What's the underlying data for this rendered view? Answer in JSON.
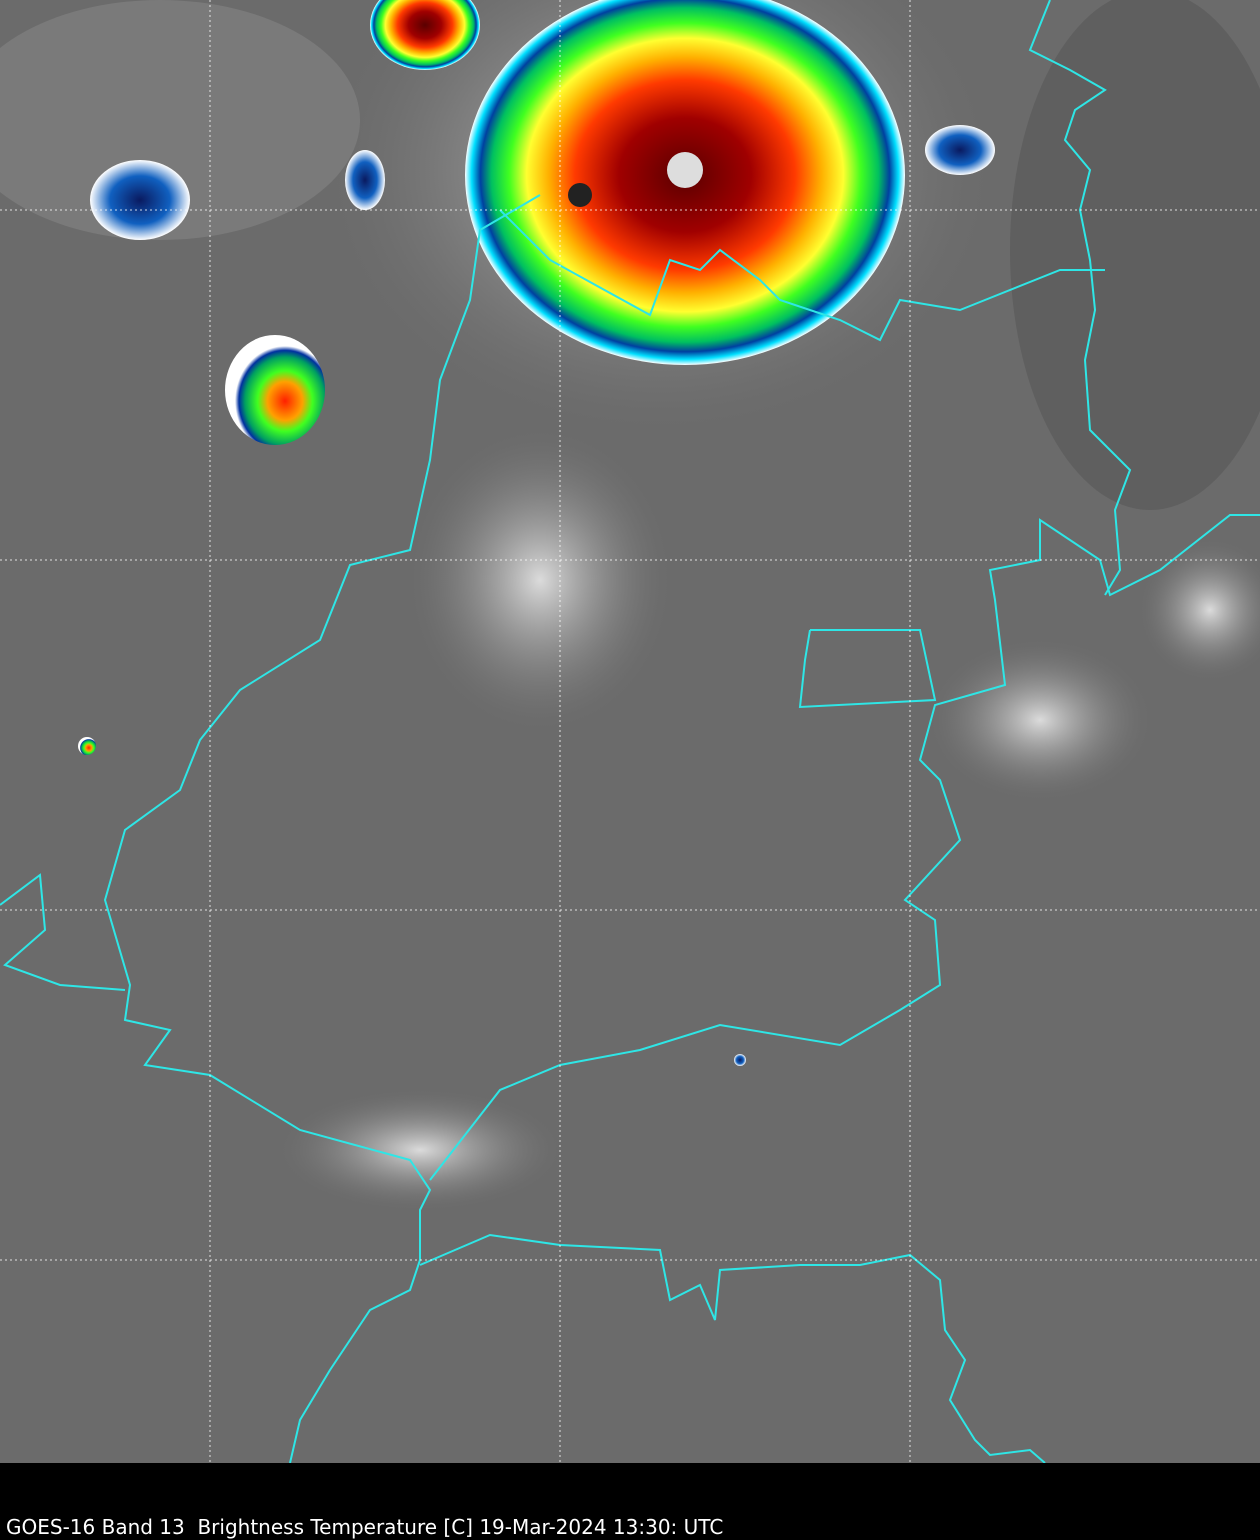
{
  "caption": "GOES-16 Band 13  Brightness Temperature [C] 19-Mar-2024 13:30: UTC"
}
